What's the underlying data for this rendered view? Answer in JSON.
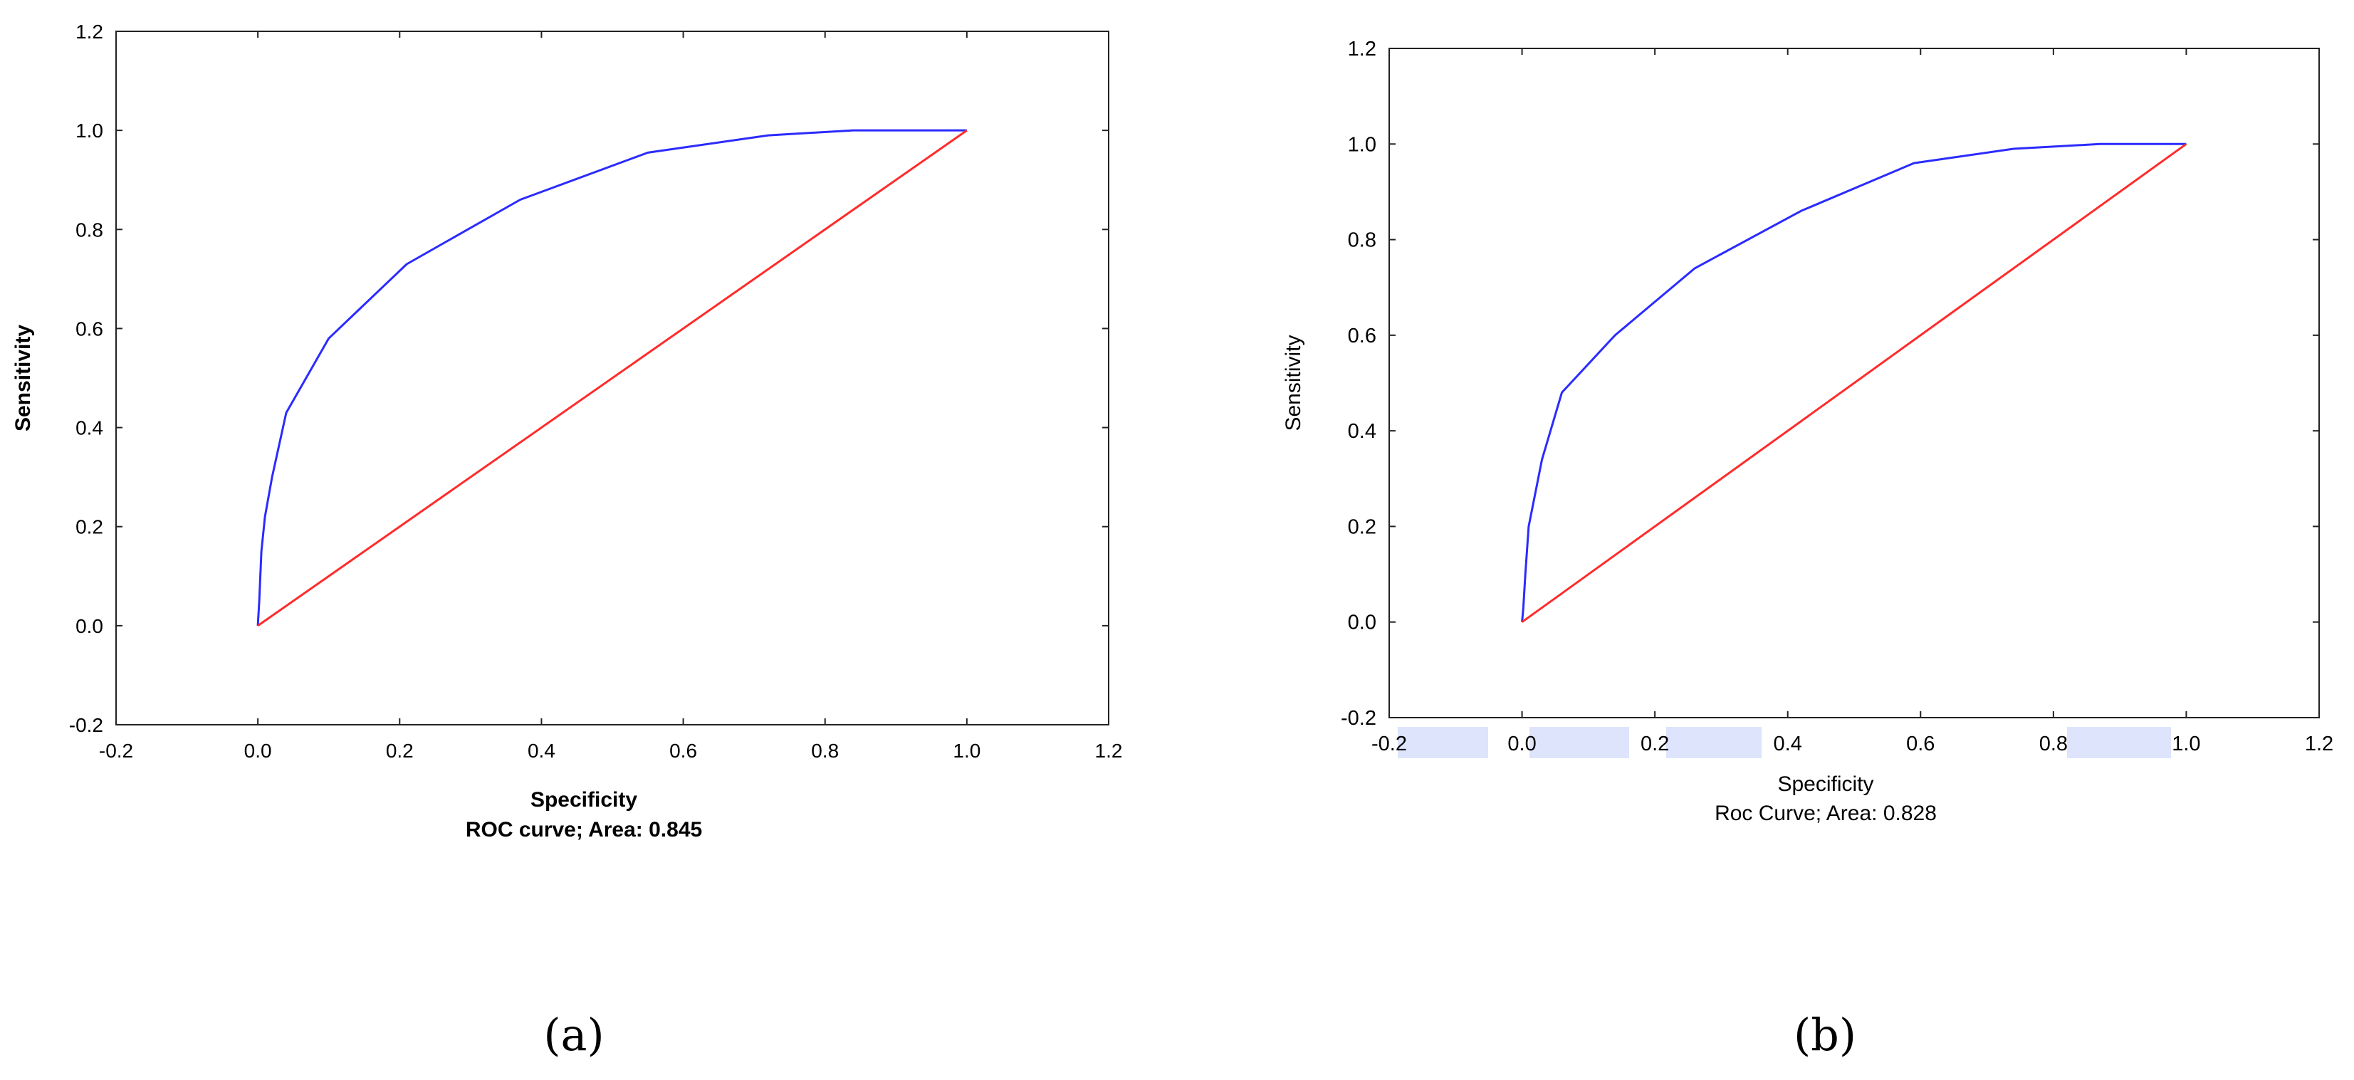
{
  "chart_data": [
    {
      "type": "line",
      "panel_label": "(a)",
      "xlabel": "Specificity",
      "caption": "ROC curve; Area: 0.845",
      "ylabel": "Sensitivity",
      "xlim": [
        -0.2,
        1.2
      ],
      "ylim": [
        -0.2,
        1.2
      ],
      "xticks": [
        "-0.2",
        "0.0",
        "0.2",
        "0.4",
        "0.6",
        "0.8",
        "1.0",
        "1.2"
      ],
      "yticks": [
        "-0.2",
        "0.0",
        "0.2",
        "0.4",
        "0.6",
        "0.8",
        "1.0",
        "1.2"
      ],
      "grid": false,
      "series": [
        {
          "color": "#2b2bff",
          "x": [
            0.0,
            0.002,
            0.005,
            0.01,
            0.02,
            0.04,
            0.1,
            0.21,
            0.37,
            0.55,
            0.72,
            0.84,
            1.0
          ],
          "y": [
            0.0,
            0.05,
            0.15,
            0.22,
            0.3,
            0.43,
            0.58,
            0.73,
            0.86,
            0.955,
            0.99,
            1.0,
            1.0
          ]
        },
        {
          "color": "#ff2b2b",
          "x": [
            0.0,
            1.0
          ],
          "y": [
            0.0,
            1.0
          ]
        }
      ]
    },
    {
      "type": "line",
      "panel_label": "(b)",
      "xlabel": "Specificity",
      "caption": "Roc Curve; Area: 0.828",
      "ylabel": "Sensitivity",
      "xlim": [
        -0.2,
        1.2
      ],
      "ylim": [
        -0.2,
        1.2
      ],
      "xticks": [
        "-0.2",
        "0.0",
        "0.2",
        "0.4",
        "0.6",
        "0.8",
        "1.0",
        "1.2"
      ],
      "yticks": [
        "-0.2",
        "0.0",
        "0.2",
        "0.4",
        "0.6",
        "0.8",
        "1.0",
        "1.2"
      ],
      "grid": false,
      "highlight_color": "#dde4fb",
      "series": [
        {
          "color": "#2b2bff",
          "x": [
            0.0,
            0.002,
            0.005,
            0.01,
            0.03,
            0.06,
            0.14,
            0.26,
            0.42,
            0.59,
            0.74,
            0.87,
            1.0
          ],
          "y": [
            0.0,
            0.03,
            0.1,
            0.2,
            0.34,
            0.48,
            0.6,
            0.74,
            0.86,
            0.96,
            0.99,
            1.0,
            1.0
          ]
        },
        {
          "color": "#ff2b2b",
          "x": [
            0.0,
            1.0
          ],
          "y": [
            0.0,
            1.0
          ]
        }
      ]
    }
  ]
}
